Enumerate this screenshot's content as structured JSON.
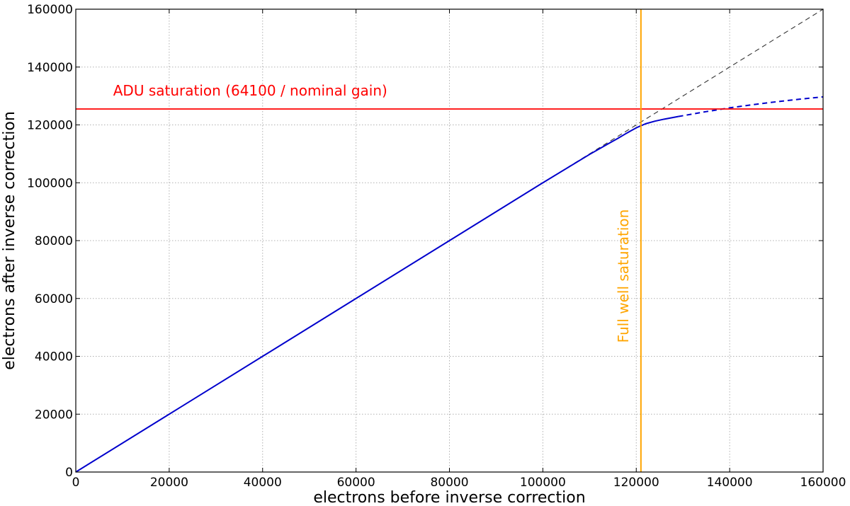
{
  "chart_data": {
    "type": "line",
    "xlabel": "electrons before inverse correction",
    "ylabel": "electrons after inverse correction",
    "xlim": [
      0,
      160000
    ],
    "ylim": [
      0,
      160000
    ],
    "xticks": [
      0,
      20000,
      40000,
      60000,
      80000,
      100000,
      120000,
      140000,
      160000
    ],
    "yticks": [
      0,
      20000,
      40000,
      60000,
      80000,
      100000,
      120000,
      140000,
      160000
    ],
    "grid": true,
    "series": [
      {
        "style": "dashed",
        "color": "#333333",
        "x": [
          0,
          160000
        ],
        "y": [
          0,
          160000
        ]
      },
      {
        "style": "solid",
        "color": "#0000cc",
        "x": [
          0,
          20000,
          40000,
          60000,
          80000,
          100000,
          110000,
          114000,
          116000,
          118000,
          120000,
          122000,
          124000,
          126000,
          128000,
          129000
        ],
        "y": [
          0,
          20000,
          40000,
          60000,
          80000,
          100000,
          109800,
          113500,
          115300,
          117200,
          119000,
          120400,
          121300,
          122000,
          122600,
          122900
        ]
      },
      {
        "style": "dashed",
        "color": "#0000cc",
        "x": [
          129000,
          135000,
          140000,
          145000,
          150000,
          155000,
          160000
        ],
        "y": [
          122900,
          124600,
          125900,
          127000,
          128000,
          128900,
          129700
        ]
      }
    ],
    "hlines": [
      {
        "y": 125500,
        "color": "#ff0000",
        "label": "ADU saturation (64100 / nominal gain)"
      }
    ],
    "vlines": [
      {
        "x": 121000,
        "color": "#ffa500",
        "label": "Full well saturation"
      }
    ]
  }
}
